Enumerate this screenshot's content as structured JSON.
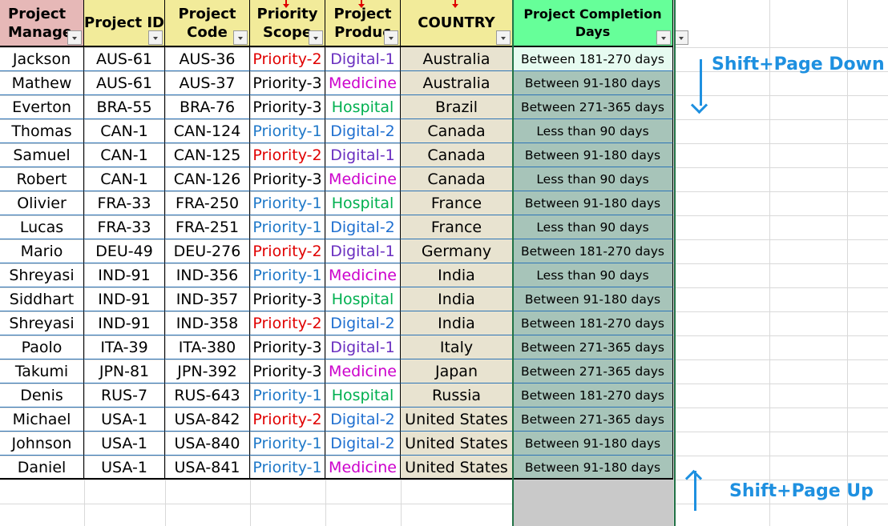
{
  "headers": {
    "manager": "Project\nManage",
    "project_id": "Project ID",
    "project_code": "Project\nCode",
    "priority_scope": "Priority\nScope",
    "project_product": "Project\nProduc",
    "country": "COUNTRY",
    "completion_days": "Project Completion\nDays"
  },
  "rows": [
    {
      "manager": "Jackson",
      "project_id": "AUS-61",
      "project_code": "AUS-36",
      "priority": "Priority-2",
      "product": "Digital-1",
      "country": "Australia",
      "days": "Between 181-270 days"
    },
    {
      "manager": "Mathew",
      "project_id": "AUS-61",
      "project_code": "AUS-37",
      "priority": "Priority-3",
      "product": "Medicine",
      "country": "Australia",
      "days": "Between 91-180 days"
    },
    {
      "manager": "Everton",
      "project_id": "BRA-55",
      "project_code": "BRA-76",
      "priority": "Priority-3",
      "product": "Hospital",
      "country": "Brazil",
      "days": "Between 271-365 days"
    },
    {
      "manager": "Thomas",
      "project_id": "CAN-1",
      "project_code": "CAN-124",
      "priority": "Priority-1",
      "product": "Digital-2",
      "country": "Canada",
      "days": "Less than 90 days"
    },
    {
      "manager": "Samuel",
      "project_id": "CAN-1",
      "project_code": "CAN-125",
      "priority": "Priority-2",
      "product": "Digital-1",
      "country": "Canada",
      "days": "Between 91-180 days"
    },
    {
      "manager": "Robert",
      "project_id": "CAN-1",
      "project_code": "CAN-126",
      "priority": "Priority-3",
      "product": "Medicine",
      "country": "Canada",
      "days": "Less than 90 days"
    },
    {
      "manager": "Olivier",
      "project_id": "FRA-33",
      "project_code": "FRA-250",
      "priority": "Priority-1",
      "product": "Hospital",
      "country": "France",
      "days": "Between 91-180 days"
    },
    {
      "manager": "Lucas",
      "project_id": "FRA-33",
      "project_code": "FRA-251",
      "priority": "Priority-1",
      "product": "Digital-2",
      "country": "France",
      "days": "Less than 90 days"
    },
    {
      "manager": "Mario",
      "project_id": "DEU-49",
      "project_code": "DEU-276",
      "priority": "Priority-2",
      "product": "Digital-1",
      "country": "Germany",
      "days": "Between 181-270 days"
    },
    {
      "manager": "Shreyasi",
      "project_id": "IND-91",
      "project_code": "IND-356",
      "priority": "Priority-1",
      "product": "Medicine",
      "country": "India",
      "days": "Less than 90 days"
    },
    {
      "manager": "Siddhart",
      "project_id": "IND-91",
      "project_code": "IND-357",
      "priority": "Priority-3",
      "product": "Hospital",
      "country": "India",
      "days": "Between 91-180 days"
    },
    {
      "manager": "Shreyasi",
      "project_id": "IND-91",
      "project_code": "IND-358",
      "priority": "Priority-2",
      "product": "Digital-2",
      "country": "India",
      "days": "Between 181-270 days"
    },
    {
      "manager": "Paolo",
      "project_id": "ITA-39",
      "project_code": "ITA-380",
      "priority": "Priority-3",
      "product": "Digital-1",
      "country": "Italy",
      "days": "Between 271-365 days"
    },
    {
      "manager": "Takumi",
      "project_id": "JPN-81",
      "project_code": "JPN-392",
      "priority": "Priority-3",
      "product": "Medicine",
      "country": "Japan",
      "days": "Between 271-365 days"
    },
    {
      "manager": "Denis",
      "project_id": "RUS-7",
      "project_code": "RUS-643",
      "priority": "Priority-1",
      "product": "Hospital",
      "country": "Russia",
      "days": "Between 181-270 days"
    },
    {
      "manager": "Michael",
      "project_id": "USA-1",
      "project_code": "USA-842",
      "priority": "Priority-2",
      "product": "Digital-2",
      "country": "United States",
      "days": "Between 271-365 days"
    },
    {
      "manager": "Johnson",
      "project_id": "USA-1",
      "project_code": "USA-840",
      "priority": "Priority-1",
      "product": "Digital-2",
      "country": "United States",
      "days": "Between 91-180 days"
    },
    {
      "manager": "Daniel",
      "project_id": "USA-1",
      "project_code": "USA-841",
      "priority": "Priority-1",
      "product": "Medicine",
      "country": "United States",
      "days": "Between 91-180 days"
    }
  ],
  "annotations": {
    "down": "Shift+Page Down",
    "up": "Shift+Page Up"
  },
  "colors": {
    "header_manager": "#e6b8b7",
    "header_default": "#f2eb9a",
    "header_completion": "#66ff99",
    "country_fill": "#e8e3d0",
    "days_fill": "#a7c4b9",
    "days_selected_fill": "#e6fbf0",
    "priority_1": "#1f78c8",
    "priority_2": "#e00000",
    "priority_3": "#000000",
    "digital_1": "#6a2fc0",
    "digital_2": "#1f6fd0",
    "medicine": "#cc00cc",
    "hospital": "#00b050",
    "annotation": "#1e90e0"
  }
}
